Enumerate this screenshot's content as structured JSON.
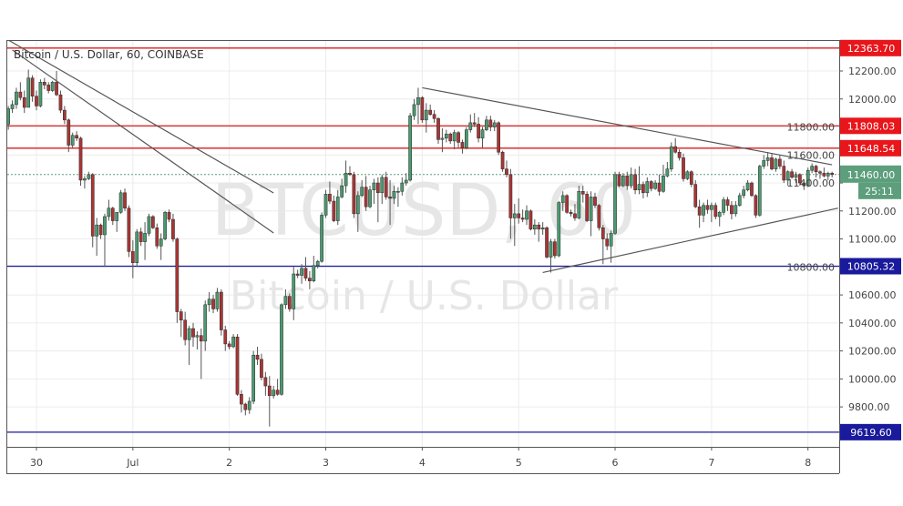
{
  "header": {
    "title": "Bitcoin / U.S. Dollar, 60, COINBASE"
  },
  "watermark": {
    "symbol": "BTCUSD, 60",
    "name": "Bitcoin / U.S. Dollar"
  },
  "chart_data": {
    "type": "candlestick",
    "symbol": "BTCUSD",
    "interval": "60",
    "exchange": "COINBASE",
    "start": "Jun 29 17:00",
    "ylim": [
      9560,
      12400
    ],
    "y_ticks": [
      9800,
      10000,
      10200,
      10400,
      10600,
      10800,
      11000,
      11200,
      11400,
      11600,
      11800,
      12000,
      12200
    ],
    "x_ticks": [
      {
        "label": "30",
        "time": "Jun 30 00:00"
      },
      {
        "label": "Jul",
        "time": "Jul 1 00:00"
      },
      {
        "label": "2",
        "time": "Jul 2 00:00"
      },
      {
        "label": "3",
        "time": "Jul 3 00:00"
      },
      {
        "label": "4",
        "time": "Jul 4 00:00"
      },
      {
        "label": "5",
        "time": "Jul 5 00:00"
      },
      {
        "label": "6",
        "time": "Jul 6 00:00"
      },
      {
        "label": "7",
        "time": "Jul 7 00:00"
      },
      {
        "label": "8",
        "time": "Jul 8 00:00"
      }
    ],
    "grid": true,
    "colors": {
      "up": "#4a9a70",
      "down": "#a93535",
      "wick": "#555555",
      "resistance": "#d81c1c",
      "support": "#1a1a9c",
      "trend": "#555555",
      "last": "#5d9e7c"
    },
    "horizontal_levels": [
      {
        "price": 12363.7,
        "label": "12363.70",
        "kind": "resistance"
      },
      {
        "price": 11808.03,
        "label": "11808.03",
        "kind": "resistance"
      },
      {
        "price": 11648.54,
        "label": "11648.54",
        "kind": "resistance"
      },
      {
        "price": 10805.32,
        "label": "10805.32",
        "kind": "support"
      },
      {
        "price": 9619.6,
        "label": "9619.60",
        "kind": "support"
      }
    ],
    "last_price": {
      "price": 11460.0,
      "label": "11460.00",
      "countdown": "25:11"
    },
    "trendlines": [
      {
        "from": {
          "time": "Jun 29 17:00",
          "price": 12421
        },
        "to": {
          "time": "Jul 2 11:00",
          "price": 11329
        }
      },
      {
        "from": {
          "time": "Jun 29 18:00",
          "price": 12350
        },
        "to": {
          "time": "Jul 2 11:00",
          "price": 11043
        }
      },
      {
        "from": {
          "time": "Jul 4 00:00",
          "price": 12080
        },
        "to": {
          "time": "Jul 8 06:00",
          "price": 11530
        }
      },
      {
        "from": {
          "time": "Jul 5 06:00",
          "price": 10760
        },
        "to": {
          "time": "Jul 8 07:30",
          "price": 11220
        }
      }
    ],
    "candles": [
      [
        11820,
        11950,
        11780,
        11930
      ],
      [
        11930,
        11990,
        11900,
        11960
      ],
      [
        11960,
        12080,
        11930,
        12050
      ],
      [
        12050,
        12120,
        11990,
        12010
      ],
      [
        12010,
        12060,
        11900,
        11940
      ],
      [
        11940,
        12210,
        11940,
        12150
      ],
      [
        12150,
        12170,
        11980,
        12020
      ],
      [
        12020,
        12060,
        11920,
        11950
      ],
      [
        11950,
        12140,
        11940,
        12120
      ],
      [
        12120,
        12150,
        12070,
        12100
      ],
      [
        12100,
        12120,
        12040,
        12060
      ],
      [
        12060,
        12130,
        12050,
        12120
      ],
      [
        12120,
        12200,
        12020,
        12030
      ],
      [
        12030,
        12060,
        11900,
        11920
      ],
      [
        11920,
        11950,
        11820,
        11850
      ],
      [
        11850,
        11860,
        11620,
        11670
      ],
      [
        11670,
        11760,
        11650,
        11740
      ],
      [
        11740,
        11770,
        11700,
        11720
      ],
      [
        11720,
        11730,
        11380,
        11420
      ],
      [
        11420,
        11450,
        11360,
        11430
      ],
      [
        11430,
        11480,
        11420,
        11460
      ],
      [
        11460,
        11470,
        10940,
        11020
      ],
      [
        11020,
        11150,
        10880,
        11100
      ],
      [
        11100,
        11110,
        11000,
        11030
      ],
      [
        11030,
        11180,
        10800,
        11160
      ],
      [
        11160,
        11280,
        11130,
        11220
      ],
      [
        11220,
        11230,
        11100,
        11130
      ],
      [
        11130,
        11170,
        11050,
        11190
      ],
      [
        11190,
        11350,
        11180,
        11330
      ],
      [
        11330,
        11360,
        11200,
        11220
      ],
      [
        11220,
        11240,
        10870,
        10910
      ],
      [
        10910,
        10990,
        10720,
        10830
      ],
      [
        10830,
        11070,
        10800,
        11050
      ],
      [
        11050,
        11080,
        10950,
        10980
      ],
      [
        10980,
        11120,
        10850,
        11040
      ],
      [
        11040,
        11180,
        11020,
        11160
      ],
      [
        11160,
        11170,
        11070,
        11080
      ],
      [
        11080,
        11110,
        10930,
        10950
      ],
      [
        10950,
        11040,
        10850,
        11000
      ],
      [
        11000,
        11200,
        10990,
        11190
      ],
      [
        11190,
        11210,
        11120,
        11140
      ],
      [
        11140,
        11180,
        10980,
        11000
      ],
      [
        11000,
        11010,
        10400,
        10480
      ],
      [
        10480,
        10500,
        10300,
        10420
      ],
      [
        10420,
        10480,
        10240,
        10280
      ],
      [
        10280,
        10380,
        10100,
        10360
      ],
      [
        10360,
        10400,
        10230,
        10300
      ],
      [
        10300,
        10340,
        10210,
        10310
      ],
      [
        10310,
        10360,
        10000,
        10270
      ],
      [
        10270,
        10560,
        10200,
        10530
      ],
      [
        10530,
        10620,
        10480,
        10570
      ],
      [
        10570,
        10600,
        10470,
        10500
      ],
      [
        10500,
        10650,
        10480,
        10620
      ],
      [
        10620,
        10640,
        10310,
        10350
      ],
      [
        10350,
        10380,
        10200,
        10250
      ],
      [
        10250,
        10270,
        10210,
        10230
      ],
      [
        10230,
        10320,
        10220,
        10300
      ],
      [
        10300,
        10320,
        9880,
        9890
      ],
      [
        9890,
        9920,
        9760,
        9820
      ],
      [
        9820,
        9830,
        9740,
        9780
      ],
      [
        9780,
        9870,
        9750,
        9840
      ],
      [
        9840,
        10200,
        9820,
        10170
      ],
      [
        10170,
        10230,
        10100,
        10140
      ],
      [
        10140,
        10180,
        9990,
        10010
      ],
      [
        10010,
        10050,
        9880,
        9950
      ],
      [
        9950,
        10020,
        9660,
        9880
      ],
      [
        9880,
        9950,
        9860,
        9920
      ],
      [
        9920,
        10000,
        9880,
        9890
      ],
      [
        9890,
        10540,
        9880,
        10530
      ],
      [
        10530,
        10640,
        10500,
        10590
      ],
      [
        10590,
        10610,
        10480,
        10500
      ],
      [
        10500,
        10800,
        10420,
        10750
      ],
      [
        10750,
        10780,
        10720,
        10740
      ],
      [
        10740,
        10820,
        10680,
        10790
      ],
      [
        10790,
        10870,
        10700,
        10720
      ],
      [
        10720,
        10770,
        10640,
        10700
      ],
      [
        10700,
        10880,
        10690,
        10810
      ],
      [
        10810,
        10850,
        10790,
        10840
      ],
      [
        10840,
        11190,
        10830,
        11170
      ],
      [
        11170,
        11350,
        11150,
        11320
      ],
      [
        11320,
        11410,
        11250,
        11270
      ],
      [
        11270,
        11310,
        11120,
        11130
      ],
      [
        11130,
        11350,
        11100,
        11300
      ],
      [
        11300,
        11430,
        11290,
        11380
      ],
      [
        11380,
        11560,
        11330,
        11470
      ],
      [
        11470,
        11520,
        11450,
        11460
      ],
      [
        11460,
        11480,
        11150,
        11180
      ],
      [
        11180,
        11340,
        11050,
        11310
      ],
      [
        11310,
        11420,
        11300,
        11370
      ],
      [
        11370,
        11450,
        11200,
        11230
      ],
      [
        11230,
        11380,
        11220,
        11350
      ],
      [
        11350,
        11430,
        11250,
        11400
      ],
      [
        11400,
        11440,
        11120,
        11330
      ],
      [
        11330,
        11460,
        11250,
        11440
      ],
      [
        11440,
        11480,
        11280,
        11300
      ],
      [
        11300,
        11420,
        11100,
        11290
      ],
      [
        11290,
        11380,
        11250,
        11340
      ],
      [
        11340,
        11370,
        11230,
        11340
      ],
      [
        11340,
        11440,
        11310,
        11400
      ],
      [
        11400,
        11470,
        11380,
        11420
      ],
      [
        11420,
        11900,
        11410,
        11880
      ],
      [
        11880,
        12000,
        11850,
        11960
      ],
      [
        11960,
        12080,
        11820,
        12010
      ],
      [
        12010,
        12020,
        11830,
        11850
      ],
      [
        11850,
        11970,
        11760,
        11920
      ],
      [
        11920,
        11960,
        11880,
        11890
      ],
      [
        11890,
        11920,
        11830,
        11860
      ],
      [
        11860,
        11870,
        11680,
        11710
      ],
      [
        11710,
        11790,
        11620,
        11720
      ],
      [
        11720,
        11780,
        11690,
        11750
      ],
      [
        11750,
        11760,
        11680,
        11700
      ],
      [
        11700,
        11780,
        11640,
        11760
      ],
      [
        11760,
        11770,
        11650,
        11690
      ],
      [
        11690,
        11710,
        11610,
        11650
      ],
      [
        11650,
        11800,
        11640,
        11780
      ],
      [
        11780,
        11890,
        11760,
        11830
      ],
      [
        11830,
        11900,
        11800,
        11820
      ],
      [
        11820,
        11870,
        11690,
        11720
      ],
      [
        11720,
        11800,
        11650,
        11780
      ],
      [
        11780,
        11880,
        11770,
        11850
      ],
      [
        11850,
        11880,
        11770,
        11800
      ],
      [
        11800,
        11850,
        11770,
        11830
      ],
      [
        11830,
        11840,
        11600,
        11620
      ],
      [
        11620,
        11630,
        11480,
        11500
      ],
      [
        11500,
        11560,
        11440,
        11460
      ],
      [
        11460,
        11500,
        11000,
        11150
      ],
      [
        11150,
        11250,
        10950,
        11180
      ],
      [
        11180,
        11290,
        11110,
        11150
      ],
      [
        11150,
        11210,
        11120,
        11140
      ],
      [
        11140,
        11240,
        11100,
        11200
      ],
      [
        11200,
        11210,
        11060,
        11070
      ],
      [
        11070,
        11140,
        11030,
        11100
      ],
      [
        11100,
        11120,
        10980,
        11070
      ],
      [
        11070,
        11120,
        11030,
        11080
      ],
      [
        11080,
        11090,
        10860,
        10870
      ],
      [
        10870,
        11000,
        10760,
        10980
      ],
      [
        10980,
        11000,
        10860,
        10880
      ],
      [
        10880,
        11270,
        10870,
        11260
      ],
      [
        11260,
        11340,
        11200,
        11310
      ],
      [
        11310,
        11320,
        11180,
        11190
      ],
      [
        11190,
        11210,
        11160,
        11180
      ],
      [
        11180,
        11250,
        11130,
        11150
      ],
      [
        11150,
        11380,
        11140,
        11340
      ],
      [
        11340,
        11380,
        11260,
        11320
      ],
      [
        11320,
        11340,
        11120,
        11130
      ],
      [
        11130,
        11340,
        11020,
        11300
      ],
      [
        11300,
        11330,
        11220,
        11240
      ],
      [
        11240,
        11250,
        11060,
        11080
      ],
      [
        11080,
        11100,
        10820,
        11000
      ],
      [
        11000,
        11040,
        10920,
        10950
      ],
      [
        10950,
        11060,
        10830,
        11040
      ],
      [
        11040,
        11480,
        11030,
        11460
      ],
      [
        11460,
        11480,
        11370,
        11380
      ],
      [
        11380,
        11470,
        11370,
        11450
      ],
      [
        11450,
        11480,
        11350,
        11380
      ],
      [
        11380,
        11510,
        11360,
        11460
      ],
      [
        11460,
        11500,
        11320,
        11350
      ],
      [
        11350,
        11520,
        11320,
        11390
      ],
      [
        11390,
        11410,
        11290,
        11330
      ],
      [
        11330,
        11440,
        11300,
        11410
      ],
      [
        11410,
        11420,
        11340,
        11360
      ],
      [
        11360,
        11420,
        11350,
        11400
      ],
      [
        11400,
        11460,
        11310,
        11340
      ],
      [
        11340,
        11530,
        11330,
        11450
      ],
      [
        11450,
        11550,
        11440,
        11500
      ],
      [
        11500,
        11690,
        11480,
        11660
      ],
      [
        11660,
        11720,
        11610,
        11620
      ],
      [
        11620,
        11640,
        11560,
        11580
      ],
      [
        11580,
        11610,
        11410,
        11430
      ],
      [
        11430,
        11490,
        11420,
        11480
      ],
      [
        11480,
        11490,
        11370,
        11390
      ],
      [
        11390,
        11420,
        11220,
        11230
      ],
      [
        11230,
        11280,
        11080,
        11170
      ],
      [
        11170,
        11260,
        11120,
        11240
      ],
      [
        11240,
        11280,
        11180,
        11210
      ],
      [
        11210,
        11260,
        11120,
        11240
      ],
      [
        11240,
        11260,
        11140,
        11160
      ],
      [
        11160,
        11200,
        11090,
        11190
      ],
      [
        11190,
        11300,
        11170,
        11280
      ],
      [
        11280,
        11300,
        11200,
        11240
      ],
      [
        11240,
        11270,
        11140,
        11180
      ],
      [
        11180,
        11270,
        11160,
        11240
      ],
      [
        11240,
        11330,
        11230,
        11310
      ],
      [
        11310,
        11380,
        11290,
        11350
      ],
      [
        11350,
        11420,
        11340,
        11400
      ],
      [
        11400,
        11410,
        11300,
        11310
      ],
      [
        11310,
        11320,
        11150,
        11170
      ],
      [
        11170,
        11530,
        11160,
        11520
      ],
      [
        11520,
        11600,
        11500,
        11560
      ],
      [
        11560,
        11620,
        11520,
        11580
      ],
      [
        11580,
        11610,
        11490,
        11500
      ],
      [
        11500,
        11580,
        11480,
        11570
      ],
      [
        11570,
        11600,
        11500,
        11520
      ],
      [
        11520,
        11560,
        11400,
        11420
      ],
      [
        11420,
        11490,
        11380,
        11480
      ],
      [
        11480,
        11500,
        11430,
        11440
      ],
      [
        11440,
        11480,
        11400,
        11460
      ],
      [
        11460,
        11470,
        11380,
        11400
      ],
      [
        11400,
        11420,
        11350,
        11380
      ],
      [
        11380,
        11510,
        11370,
        11490
      ],
      [
        11490,
        11540,
        11470,
        11520
      ],
      [
        11520,
        11530,
        11440,
        11480
      ],
      [
        11480,
        11490,
        11430,
        11470
      ],
      [
        11470,
        11510,
        11440,
        11450
      ],
      [
        11450,
        11480,
        11420,
        11470
      ],
      [
        11470,
        11480,
        11440,
        11460
      ]
    ]
  }
}
